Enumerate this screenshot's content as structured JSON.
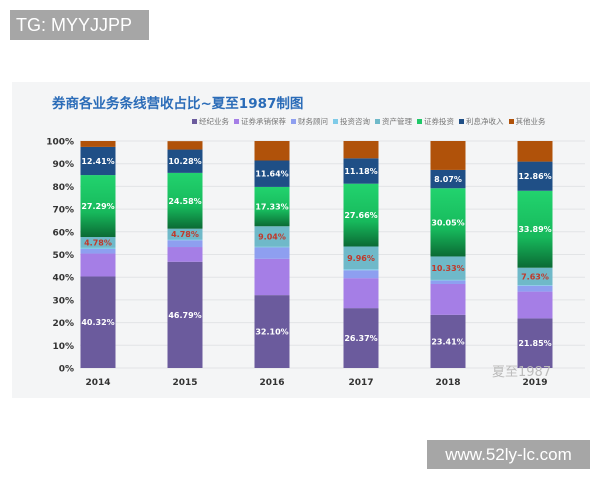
{
  "overlay_tag": "TG: MYYJJPP",
  "site_watermark": "www.52ly-lc.com",
  "chart_watermark": "夏至1987",
  "chart_data": {
    "type": "bar",
    "stacked": true,
    "title": "券商各业务条线营收占比~夏至1987制图",
    "categories": [
      "2014",
      "2015",
      "2016",
      "2017",
      "2018",
      "2019"
    ],
    "ylim": [
      0,
      100
    ],
    "yticks": [
      "0%",
      "10%",
      "20%",
      "30%",
      "40%",
      "50%",
      "60%",
      "70%",
      "80%",
      "90%",
      "100%"
    ],
    "grid": true,
    "legend_position": "top",
    "series": [
      {
        "name": "经纪业务",
        "color": "#6b5b9d",
        "label_color": "#ffffff",
        "labeled": true,
        "values": [
          40.32,
          46.79,
          32.1,
          26.37,
          23.41,
          21.85
        ]
      },
      {
        "name": "证券承销保荐",
        "color": "#a57ee6",
        "labeled": false,
        "values": [
          10.1,
          6.5,
          16.0,
          13.2,
          13.6,
          11.8
        ]
      },
      {
        "name": "财务顾问",
        "color": "#8e9ff0",
        "labeled": false,
        "values": [
          2.0,
          3.0,
          5.0,
          3.5,
          1.5,
          2.6
        ]
      },
      {
        "name": "投资咨询",
        "color": "#7fcbe8",
        "labeled": false,
        "values": [
          0.5,
          0.3,
          0.3,
          0.5,
          0.3,
          0.3
        ]
      },
      {
        "name": "资产管理",
        "color": "#6fb9c9",
        "label_color": "#c0392b",
        "labeled": true,
        "values": [
          4.78,
          4.78,
          9.04,
          9.96,
          10.33,
          7.63
        ]
      },
      {
        "name": "证券投资",
        "color": "#1fc868",
        "label_color": "#ffffff",
        "labeled": true,
        "values": [
          27.29,
          24.58,
          17.33,
          27.66,
          30.05,
          33.89
        ]
      },
      {
        "name": "利息净收入",
        "color": "#1f4f86",
        "label_color": "#ffffff",
        "labeled": true,
        "values": [
          12.41,
          10.28,
          11.64,
          11.18,
          8.07,
          12.86
        ]
      },
      {
        "name": "其他业务",
        "color": "#b0520a",
        "labeled": false,
        "values": [
          2.6,
          3.7,
          8.59,
          7.63,
          12.74,
          9.07
        ]
      }
    ]
  }
}
